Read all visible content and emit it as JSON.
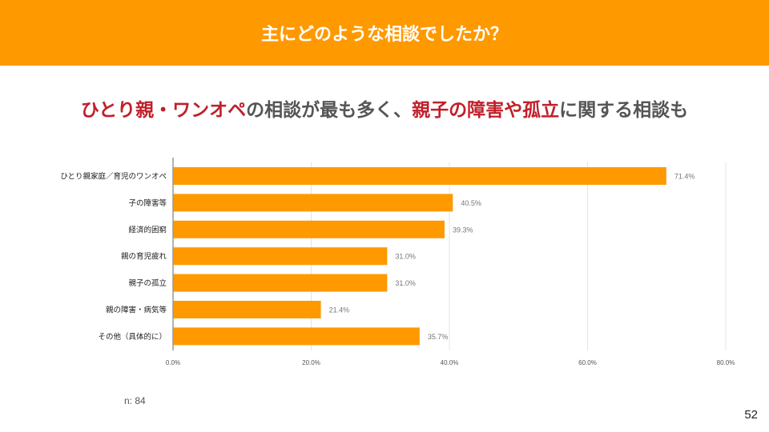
{
  "header": {
    "title": "主にどのような相談でしたか？"
  },
  "headline": {
    "parts": [
      {
        "text": "ひとり親・ワンオペ",
        "highlight": true
      },
      {
        "text": "の相談が最も多く、",
        "highlight": false
      },
      {
        "text": "親子の障害や孤立",
        "highlight": true
      },
      {
        "text": "に関する相談も",
        "highlight": false
      }
    ]
  },
  "colors": {
    "header": "#ff9900",
    "bar": "#ff9900",
    "highlight": "#c0202a"
  },
  "chart_data": {
    "type": "bar",
    "orientation": "horizontal",
    "categories": [
      "ひとり親家庭／育児のワンオペ",
      "子の障害等",
      "経済的困窮",
      "親の育児疲れ",
      "親子の孤立",
      "親の障害・病気等",
      "その他（具体的に）"
    ],
    "values": [
      71.4,
      40.5,
      39.3,
      31.0,
      31.0,
      21.4,
      35.7
    ],
    "data_labels": [
      "71.4%",
      "40.5%",
      "39.3%",
      "31.0%",
      "31.0%",
      "21.4%",
      "35.7%"
    ],
    "xlim": [
      0,
      80
    ],
    "xticks": [
      0,
      20,
      40,
      60,
      80
    ],
    "xtick_labels": [
      "0.0%",
      "20.0%",
      "40.0%",
      "60.0%",
      "80.0%"
    ],
    "grid": true
  },
  "footer": {
    "n_label": "n: 84",
    "page_number": "52"
  }
}
